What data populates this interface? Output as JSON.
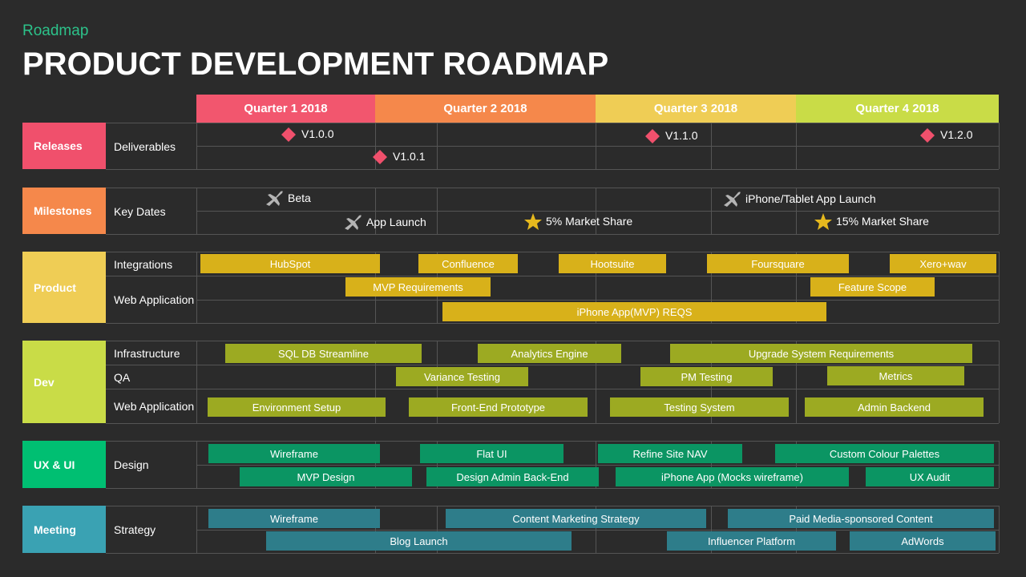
{
  "header": {
    "kicker": "Roadmap",
    "title": "PRODUCT DEVELOPMENT ROADMAP"
  },
  "quarters": [
    "Quarter 1 2018",
    "Quarter 2 2018",
    "Quarter 3 2018",
    "Quarter 4 2018"
  ],
  "groups": [
    {
      "name": "Releases",
      "rows": [
        {
          "label": "Deliverables",
          "items": [
            "V1.0.0",
            "V1.0.1",
            "V1.1.0",
            "V1.2.0"
          ]
        }
      ]
    },
    {
      "name": "Milestones",
      "rows": [
        {
          "label": "Key Dates",
          "items": [
            "Beta",
            "App Launch",
            "5% Market Share",
            "iPhone/Tablet App Launch",
            "15% Market Share"
          ]
        }
      ]
    },
    {
      "name": "Product",
      "rows": [
        {
          "label": "Integrations",
          "items": [
            "HubSpot",
            "Confluence",
            "Hootsuite",
            "Foursquare",
            "Xero+wav"
          ]
        },
        {
          "label": "Web Application",
          "items": [
            "MVP Requirements",
            "Feature Scope",
            "iPhone App(MVP) REQS"
          ]
        }
      ]
    },
    {
      "name": "Dev",
      "rows": [
        {
          "label": "Infrastructure",
          "items": [
            "SQL DB Streamline",
            "Analytics Engine",
            "Upgrade System Requirements"
          ]
        },
        {
          "label": "QA",
          "items": [
            "Variance Testing",
            "PM Testing",
            "Metrics"
          ]
        },
        {
          "label": "Web Application",
          "items": [
            "Environment Setup",
            "Front-End Prototype",
            "Testing System",
            "Admin Backend"
          ]
        }
      ]
    },
    {
      "name": "UX & UI",
      "rows": [
        {
          "label": "Design",
          "items": [
            "Wireframe",
            "Flat UI",
            "Refine Site NAV",
            "Custom Colour Palettes",
            "MVP Design",
            "Design Admin Back-End",
            "iPhone App (Mocks wireframe)",
            "UX Audit"
          ]
        }
      ]
    },
    {
      "name": "Meeting",
      "rows": [
        {
          "label": "Strategy",
          "items": [
            "Wireframe",
            "Content Marketing Strategy",
            "Paid Media-sponsored Content",
            "Blog Launch",
            "Influencer Platform",
            "AdWords"
          ]
        }
      ]
    }
  ]
}
